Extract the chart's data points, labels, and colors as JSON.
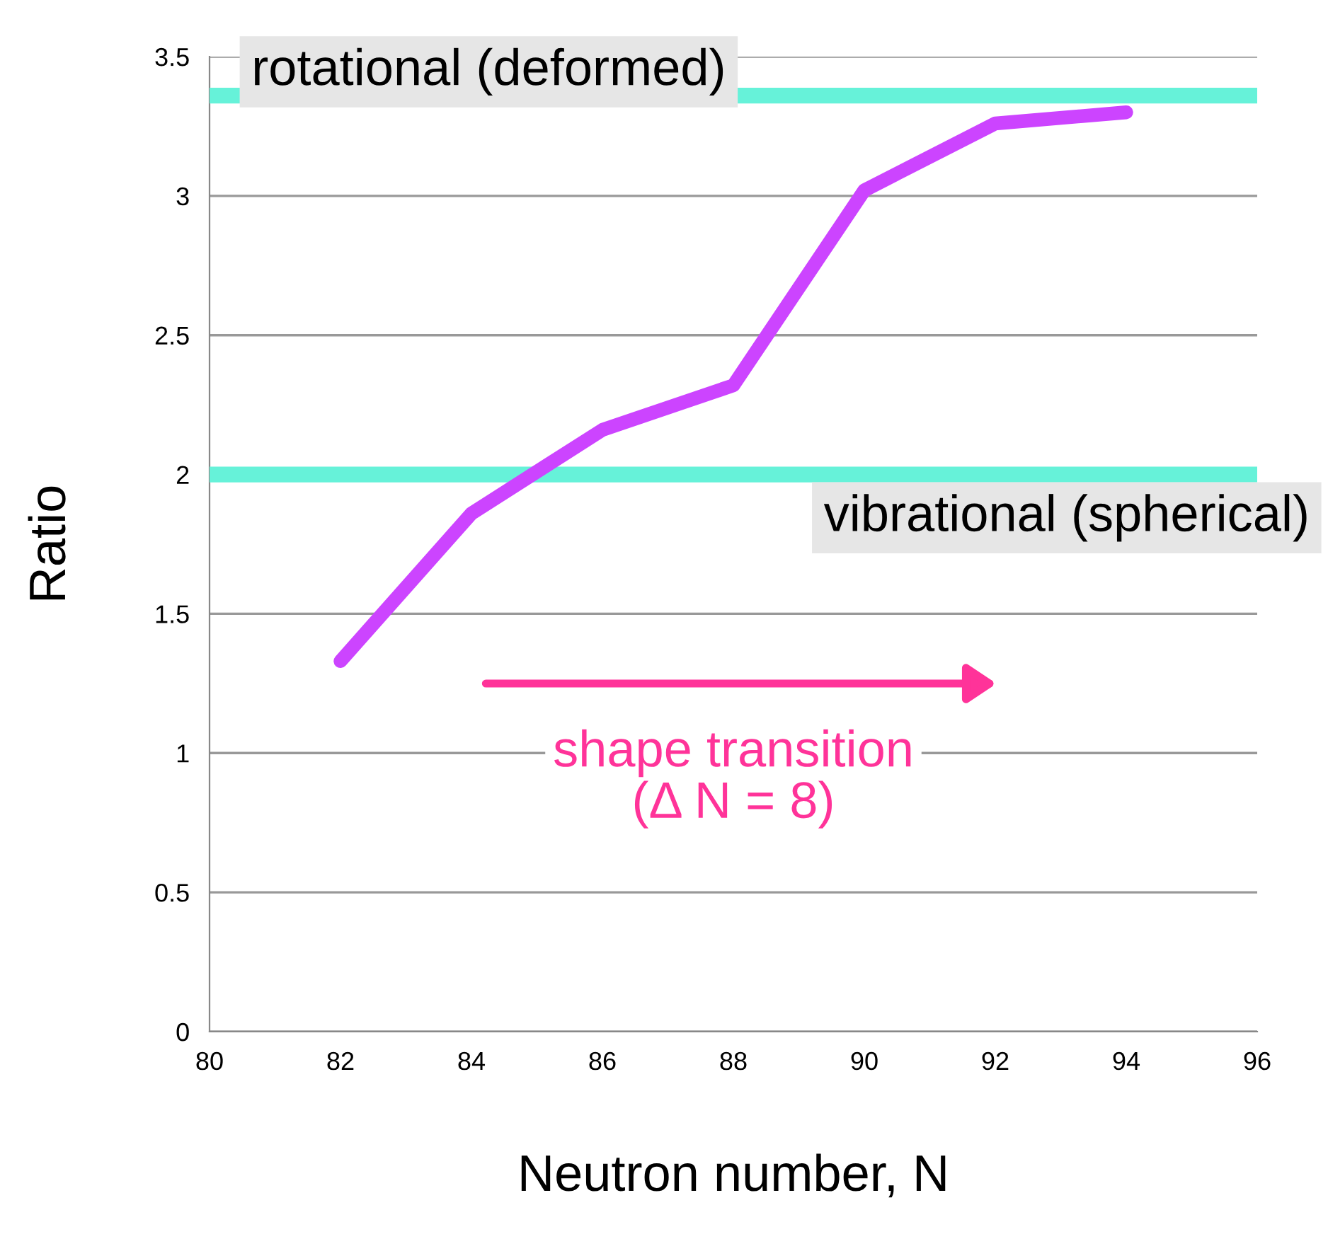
{
  "chart_data": {
    "type": "line",
    "xlabel": "Neutron number, N",
    "ylabel": "Ratio",
    "x": [
      82,
      84,
      86,
      88,
      90,
      92,
      94
    ],
    "series": [
      {
        "color": "#cc44ff",
        "values": [
          1.33,
          1.86,
          2.16,
          2.32,
          3.02,
          3.26,
          3.3
        ]
      }
    ],
    "xlim": [
      80,
      96
    ],
    "xticks": [
      80,
      82,
      84,
      86,
      88,
      90,
      92,
      94,
      96
    ],
    "ylim": [
      0,
      3.5
    ],
    "yticks": [
      0,
      0.5,
      1,
      1.5,
      2,
      2.5,
      3,
      3.5
    ],
    "grid": "y",
    "marker": "none",
    "line_style": "solid",
    "ref_lines": [
      {
        "axis": "y",
        "value": 3.36,
        "label": "rotational (deformed)",
        "color": "#66f2d9"
      },
      {
        "axis": "y",
        "value": 2.0,
        "label": "vibrational (spherical)",
        "color": "#66f2d9"
      }
    ],
    "annotations": [
      "shape transition\n(Δ N = 8)"
    ]
  }
}
